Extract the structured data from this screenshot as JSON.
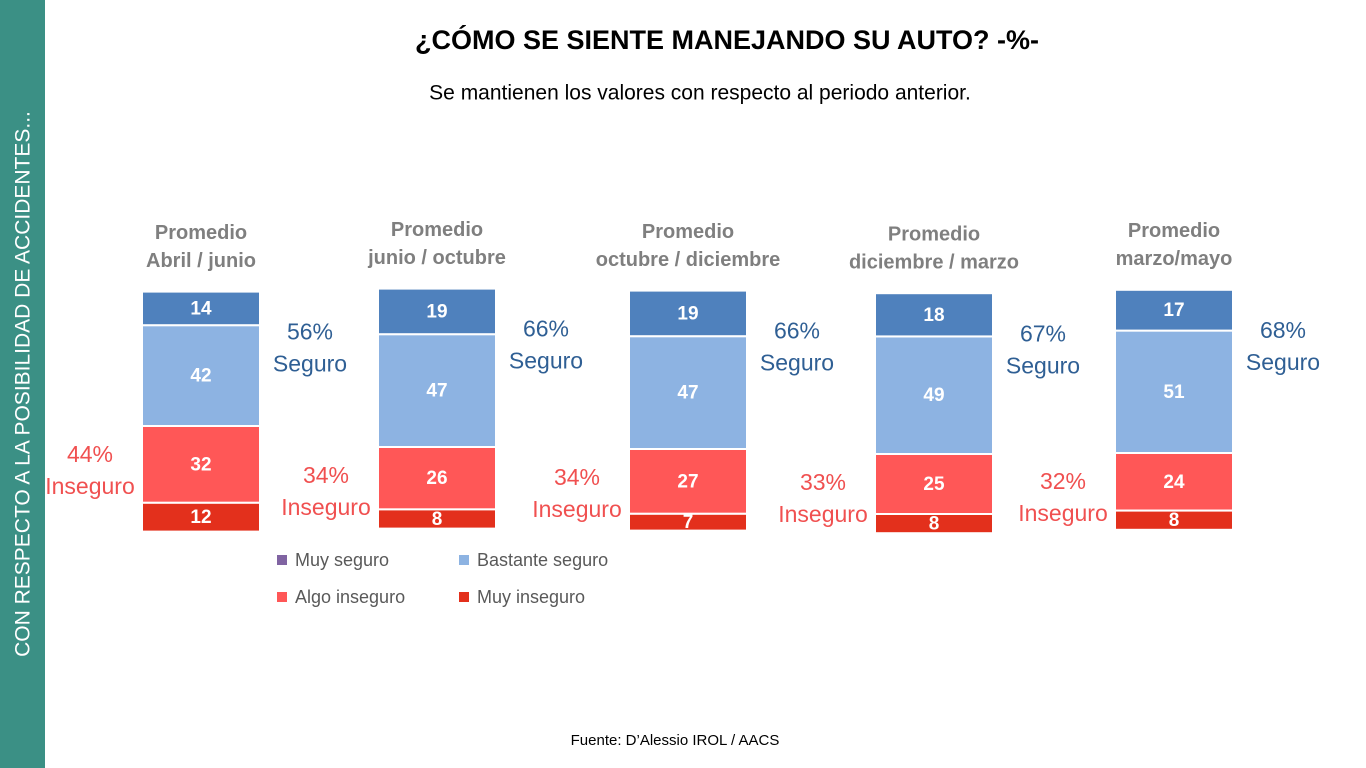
{
  "side_note": "CON RESPECTO A LA POSIBILIDAD DE ACCIDENTES...",
  "source": "Fuente: D’Alessio IROL / AACS",
  "chart_data": {
    "type": "stacked-bar",
    "title": "¿CÓMO SE SIENTE MANEJANDO SU AUTO? -%-",
    "subtitle": "Se mantienen los valores con respecto al periodo anterior.",
    "categories": [
      [
        "Promedio",
        "Abril / junio"
      ],
      [
        "Promedio",
        "junio / octubre"
      ],
      [
        "Promedio",
        "octubre / diciembre"
      ],
      [
        "Promedio",
        "diciembre / marzo"
      ],
      [
        "Promedio",
        "marzo/mayo"
      ]
    ],
    "series": [
      {
        "name": "Muy seguro",
        "color": "#4f81bd",
        "legend_color": "#8064a2",
        "values": [
          14,
          19,
          19,
          18,
          17
        ]
      },
      {
        "name": "Bastante seguro",
        "color": "#8db3e2",
        "values": [
          42,
          47,
          47,
          49,
          51
        ]
      },
      {
        "name": "Algo inseguro",
        "color": "#ff5757",
        "values": [
          32,
          26,
          27,
          25,
          24
        ]
      },
      {
        "name": "Muy inseguro",
        "color": "#e3301c",
        "values": [
          12,
          8,
          7,
          8,
          8
        ]
      }
    ],
    "safe_totals": [
      "56%",
      "66%",
      "66%",
      "67%",
      "68%"
    ],
    "safe_word": "Seguro",
    "safe_color": "#2f5f94",
    "unsafe_totals": [
      "44%",
      "34%",
      "34%",
      "33%",
      "32%"
    ],
    "unsafe_word": "Inseguro",
    "unsafe_color": "#f05050"
  }
}
